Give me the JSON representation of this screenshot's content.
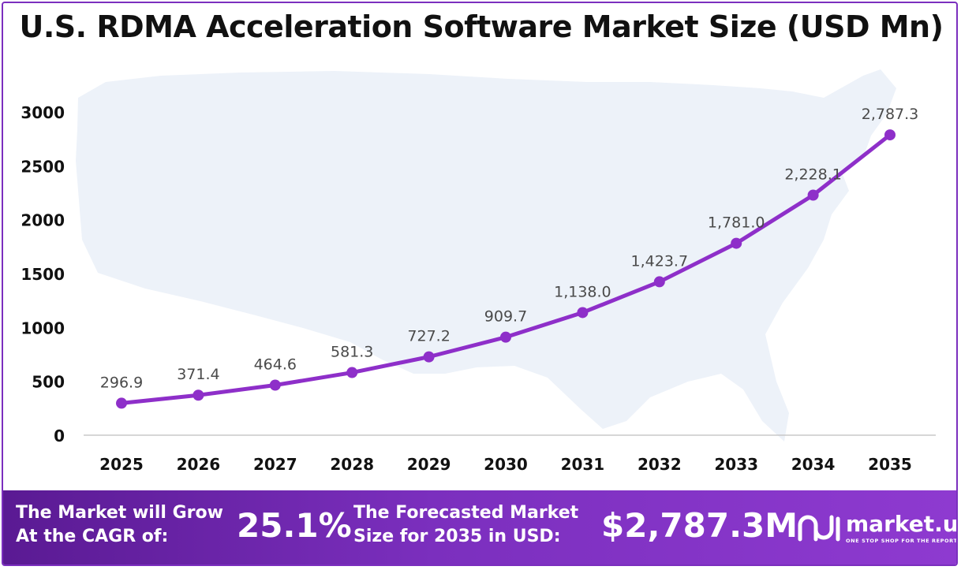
{
  "chart_data": {
    "type": "line",
    "title": "U.S. RDMA Acceleration Software Market Size (USD Mn)",
    "categories": [
      "2025",
      "2026",
      "2027",
      "2028",
      "2029",
      "2030",
      "2031",
      "2032",
      "2033",
      "2034",
      "2035"
    ],
    "series": [
      {
        "values": [
          296.9,
          371.4,
          464.6,
          581.3,
          727.2,
          909.7,
          1138.0,
          1423.7,
          1781.0,
          2228.1,
          2787.3
        ],
        "labels": [
          "296.9",
          "371.4",
          "464.6",
          "581.3",
          "727.2",
          "909.7",
          "1,138.0",
          "1,423.7",
          "1,781.0",
          "2,228.1",
          "2,787.3"
        ]
      }
    ],
    "yticks": [
      0,
      500,
      1000,
      1500,
      2000,
      2500,
      3000
    ],
    "ylim": [
      0,
      3000
    ],
    "xlabel": "",
    "ylabel": "",
    "grid": false,
    "line_color": "#8e2fc9",
    "background": "light-blue U.S. map silhouette"
  },
  "footer": {
    "cagr_label_1": "The Market will Grow",
    "cagr_label_2": "At the CAGR of:",
    "cagr_value": "25.1%",
    "forecast_label_1": "The Forecasted Market",
    "forecast_label_2": "Size for 2035 in USD:",
    "forecast_value": "$2,787.3M",
    "logo_name": "market.us",
    "logo_tagline": "ONE STOP SHOP FOR THE REPORTS",
    "background_color": "#7b2fbe"
  }
}
